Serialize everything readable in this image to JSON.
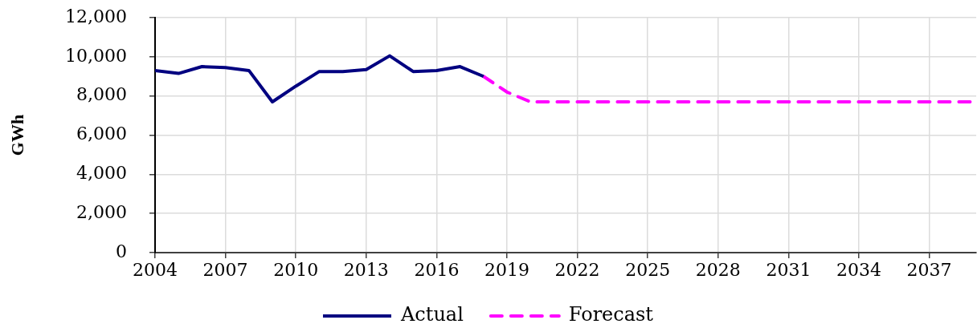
{
  "chart_data": {
    "type": "line",
    "ylabel": "GWh",
    "xlim": [
      2004,
      2039
    ],
    "xticks": [
      2004,
      2007,
      2010,
      2013,
      2016,
      2019,
      2022,
      2025,
      2028,
      2031,
      2034,
      2037
    ],
    "ylim": [
      0,
      12000
    ],
    "yticks": [
      0,
      {
        "value": 2000,
        "label": "2,000"
      },
      {
        "value": 4000,
        "label": "4,000"
      },
      {
        "value": 6000,
        "label": "6,000"
      },
      {
        "value": 8000,
        "label": "8,000"
      },
      {
        "value": 10000,
        "label": "10,000"
      },
      {
        "value": 12000,
        "label": "12,000"
      }
    ],
    "grid": true,
    "legend": "bottom",
    "series": [
      {
        "name": "Actual",
        "color": "#000080",
        "line_style": "solid",
        "x": [
          2004,
          2005,
          2006,
          2007,
          2008,
          2009,
          2010,
          2011,
          2012,
          2013,
          2014,
          2015,
          2016,
          2017,
          2018
        ],
        "values": [
          9300,
          9150,
          9500,
          9450,
          9300,
          7700,
          8500,
          9250,
          9250,
          9350,
          10050,
          9250,
          9300,
          9500,
          9000
        ]
      },
      {
        "name": "Forecast",
        "color": "#ff00ff",
        "line_style": "dashed",
        "x": [
          2018,
          2019,
          2020,
          2021,
          2022,
          2023,
          2024,
          2025,
          2026,
          2027,
          2028,
          2029,
          2030,
          2031,
          2032,
          2033,
          2034,
          2035,
          2036,
          2037,
          2038,
          2039
        ],
        "values": [
          9000,
          8200,
          7700,
          7700,
          7700,
          7700,
          7700,
          7700,
          7700,
          7700,
          7700,
          7700,
          7700,
          7700,
          7700,
          7700,
          7700,
          7700,
          7700,
          7700,
          7700,
          7700
        ]
      }
    ]
  }
}
